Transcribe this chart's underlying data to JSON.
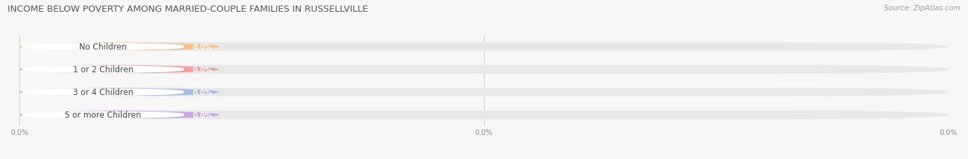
{
  "title": "INCOME BELOW POVERTY AMONG MARRIED-COUPLE FAMILIES IN RUSSELLVILLE",
  "source": "Source: ZipAtlas.com",
  "categories": [
    "No Children",
    "1 or 2 Children",
    "3 or 4 Children",
    "5 or more Children"
  ],
  "values": [
    0.0,
    0.0,
    0.0,
    0.0
  ],
  "bar_colors": [
    "#f5c08c",
    "#f0a0a0",
    "#a8bce8",
    "#c8a8e0"
  ],
  "bg_color": "#f7f7f7",
  "bar_bg_color": "#e8e8e8",
  "title_fontsize": 9.5,
  "source_fontsize": 7.5,
  "bar_label_fontsize": 7.5,
  "category_fontsize": 8.5,
  "figsize": [
    14.06,
    2.32
  ],
  "dpi": 100
}
